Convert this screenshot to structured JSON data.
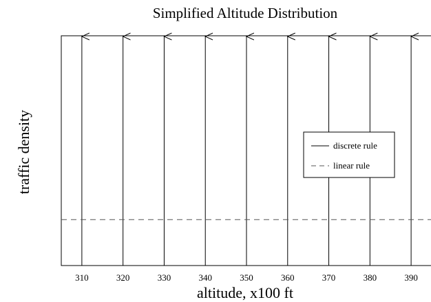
{
  "chart_data": {
    "type": "line",
    "title": "Simplified Altitude Distribution",
    "xlabel": "altitude, x100 ft",
    "ylabel": "traffic density",
    "xlim": [
      305,
      395
    ],
    "x_ticks": [
      310,
      320,
      330,
      340,
      350,
      360,
      370,
      380,
      390
    ],
    "grid": false,
    "legend_position": "right",
    "series": [
      {
        "name": "discrete rule",
        "style": "solid",
        "mark": "impulse-arrow",
        "x": [
          310,
          320,
          330,
          340,
          350,
          360,
          370,
          380,
          390
        ]
      },
      {
        "name": "linear rule",
        "style": "dashed",
        "mark": "horizontal-line",
        "level_fraction": 0.2
      }
    ],
    "legend": [
      "discrete rule",
      "linear rule"
    ],
    "colors": {
      "axis": "#000000",
      "discrete_rule": "#000000",
      "linear_rule": "#555555"
    }
  }
}
